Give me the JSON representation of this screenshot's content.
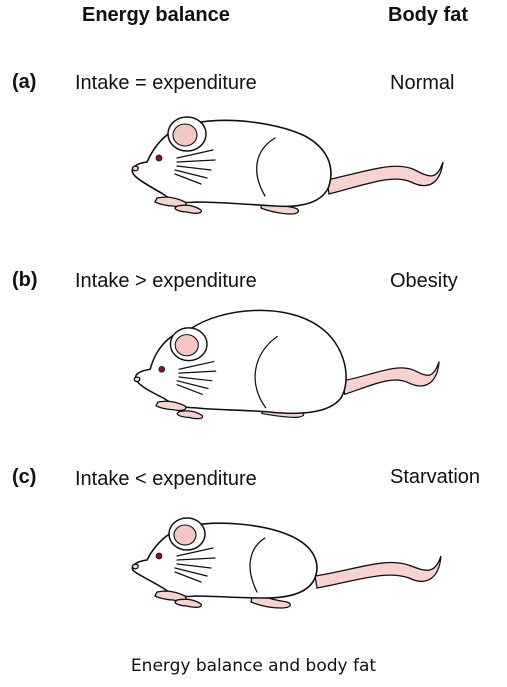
{
  "headers": {
    "energy_balance": "Energy balance",
    "body_fat": "Body fat"
  },
  "rows": [
    {
      "letter": "(a)",
      "equation": "Intake = expenditure",
      "body_fat": "Normal"
    },
    {
      "letter": "(b)",
      "equation": "Intake > expenditure",
      "body_fat": "Obesity"
    },
    {
      "letter": "(c)",
      "equation": "Intake < expenditure",
      "body_fat": "Starvation"
    }
  ],
  "caption": "Energy balance and body fat",
  "colors": {
    "skin_pink": "#f6d3cf",
    "ear_inner": "#f4c7c2",
    "eye": "#8a1020"
  },
  "icons": [
    "mouse-normal-icon",
    "mouse-obese-icon",
    "mouse-thin-icon"
  ]
}
